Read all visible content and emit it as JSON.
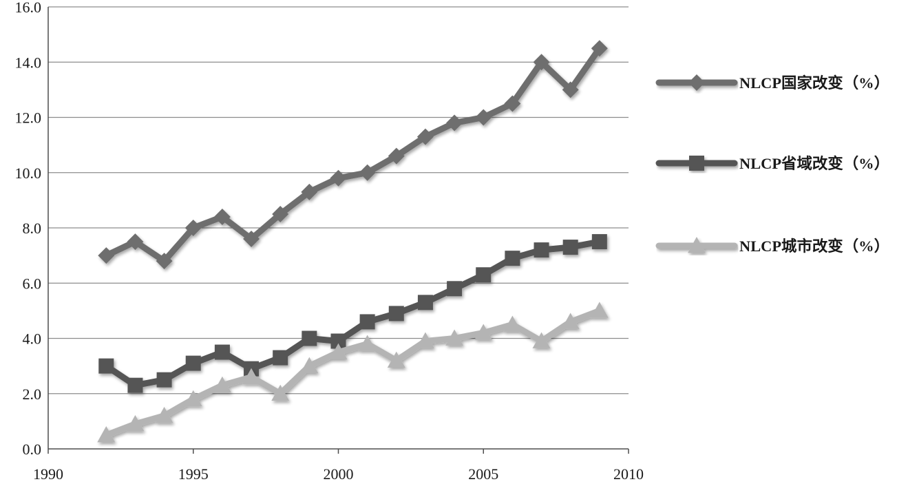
{
  "chart_data": {
    "type": "line",
    "title": "",
    "xlabel": "",
    "ylabel": "",
    "xlim": [
      1990,
      2010
    ],
    "ylim": [
      0,
      16
    ],
    "x_ticks": [
      "1990",
      "1995",
      "2000",
      "2005",
      "2010"
    ],
    "y_ticks": [
      "0.0",
      "2.0",
      "4.0",
      "6.0",
      "8.0",
      "10.0",
      "12.0",
      "14.0",
      "16.0"
    ],
    "grid": "horizontal",
    "legend_position": "right",
    "x": [
      1992,
      1993,
      1994,
      1995,
      1996,
      1997,
      1998,
      1999,
      2000,
      2001,
      2002,
      2003,
      2004,
      2005,
      2006,
      2007,
      2008,
      2009
    ],
    "series": [
      {
        "name": "NLCP国家改变（%）",
        "marker": "diamond",
        "color": "#6e6e6e",
        "values": [
          7.0,
          7.5,
          6.8,
          8.0,
          8.4,
          7.6,
          8.5,
          9.3,
          9.8,
          10.0,
          10.6,
          11.3,
          11.8,
          12.0,
          12.5,
          14.0,
          13.0,
          14.5
        ]
      },
      {
        "name": "NLCP省域改变（%）",
        "marker": "square",
        "color": "#555555",
        "values": [
          3.0,
          2.3,
          2.5,
          3.1,
          3.5,
          2.9,
          3.3,
          4.0,
          3.9,
          4.6,
          4.9,
          5.3,
          5.8,
          6.3,
          6.9,
          7.2,
          7.3,
          7.5
        ]
      },
      {
        "name": "NLCP城市改变（%）",
        "marker": "triangle",
        "color": "#b4b4b4",
        "values": [
          0.5,
          0.9,
          1.2,
          1.8,
          2.3,
          2.6,
          2.0,
          3.0,
          3.5,
          3.8,
          3.2,
          3.9,
          4.0,
          4.2,
          4.5,
          3.9,
          4.6,
          5.0
        ]
      }
    ]
  }
}
